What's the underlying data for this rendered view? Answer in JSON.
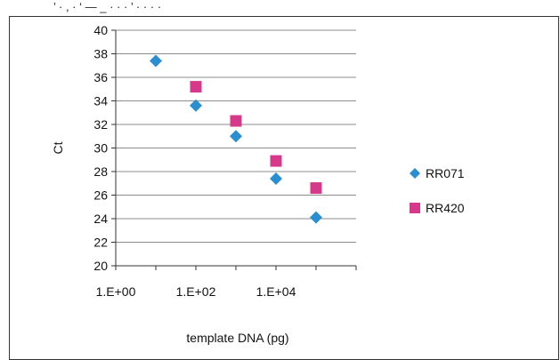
{
  "header_fragment": "’ · , · ‘ — _ · · · ’ · · · ·",
  "chart_data": {
    "type": "scatter",
    "title": "",
    "xlabel": "template DNA (pg)",
    "ylabel": "Ct",
    "x_scale": "log10",
    "xlim": [
      1,
      1000000
    ],
    "x_ticks": [
      1,
      100,
      10000
    ],
    "x_tick_labels": [
      "1.E+00",
      "1.E+02",
      "1.E+04"
    ],
    "ylim": [
      20,
      40
    ],
    "y_ticks": [
      20,
      22,
      24,
      26,
      28,
      30,
      32,
      34,
      36,
      38,
      40
    ],
    "grid": "horizontal",
    "legend_position": "right",
    "series": [
      {
        "name": "RR071",
        "marker": "diamond",
        "color": "#2a8fd0",
        "x": [
          10,
          100,
          1000,
          10000,
          100000
        ],
        "y": [
          37.4,
          33.6,
          31.0,
          27.4,
          24.1
        ]
      },
      {
        "name": "RR420",
        "marker": "square",
        "color": "#d6398a",
        "x": [
          100,
          1000,
          10000,
          100000
        ],
        "y": [
          35.2,
          32.3,
          28.9,
          26.6
        ]
      }
    ]
  }
}
